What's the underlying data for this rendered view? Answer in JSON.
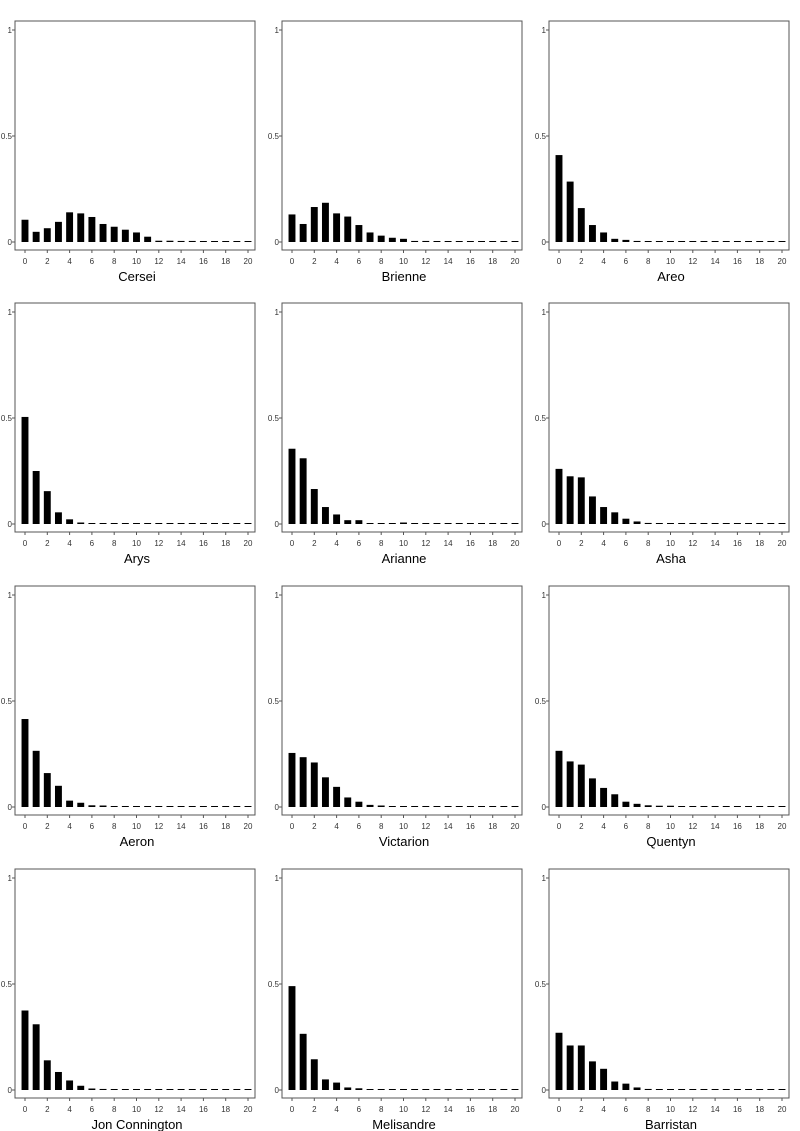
{
  "chart_data": [
    {
      "type": "bar",
      "title": "Cersei",
      "x": [
        0,
        1,
        2,
        3,
        4,
        5,
        6,
        7,
        8,
        9,
        10,
        11,
        12,
        13,
        14,
        15,
        16,
        17,
        18,
        19,
        20
      ],
      "values": [
        0.105,
        0.048,
        0.065,
        0.095,
        0.14,
        0.135,
        0.118,
        0.085,
        0.072,
        0.058,
        0.045,
        0.025,
        0.006,
        0.006,
        0.005,
        0.005,
        0.003,
        0.002,
        0.002,
        0.002,
        0.002
      ],
      "ylim": [
        0,
        1
      ],
      "yticks": [
        "0",
        "0.5",
        "1"
      ],
      "xticks": [
        "0",
        "2",
        "4",
        "6",
        "8",
        "10",
        "12",
        "14",
        "16",
        "18",
        "20"
      ],
      "grid": false
    },
    {
      "type": "bar",
      "title": "Brienne",
      "x": [
        0,
        1,
        2,
        3,
        4,
        5,
        6,
        7,
        8,
        9,
        10,
        11,
        12,
        13,
        14,
        15,
        16,
        17,
        18,
        19,
        20
      ],
      "values": [
        0.13,
        0.085,
        0.165,
        0.185,
        0.135,
        0.12,
        0.08,
        0.045,
        0.03,
        0.02,
        0.015,
        0.005,
        0.005,
        0.004,
        0.002,
        0.002,
        0.002,
        0.002,
        0.002,
        0.002,
        0.002
      ],
      "ylim": [
        0,
        1
      ],
      "yticks": [
        "0",
        "0.5",
        "1"
      ],
      "xticks": [
        "0",
        "2",
        "4",
        "6",
        "8",
        "10",
        "12",
        "14",
        "16",
        "18",
        "20"
      ],
      "grid": false
    },
    {
      "type": "bar",
      "title": "Areo",
      "x": [
        0,
        1,
        2,
        3,
        4,
        5,
        6,
        7,
        8,
        9,
        10,
        11,
        12,
        13,
        14,
        15,
        16,
        17,
        18,
        19,
        20
      ],
      "values": [
        0.41,
        0.285,
        0.16,
        0.08,
        0.045,
        0.015,
        0.01,
        0.005,
        0.002,
        0.002,
        0.002,
        0.002,
        0.002,
        0.002,
        0.002,
        0.002,
        0.002,
        0.002,
        0.002,
        0.002,
        0.002
      ],
      "ylim": [
        0,
        1
      ],
      "yticks": [
        "0",
        "0.5",
        "1"
      ],
      "xticks": [
        "0",
        "2",
        "4",
        "6",
        "8",
        "10",
        "12",
        "14",
        "16",
        "18",
        "20"
      ],
      "grid": false
    },
    {
      "type": "bar",
      "title": "Arys",
      "x": [
        0,
        1,
        2,
        3,
        4,
        5,
        6,
        7,
        8,
        9,
        10,
        11,
        12,
        13,
        14,
        15,
        16,
        17,
        18,
        19,
        20
      ],
      "values": [
        0.505,
        0.25,
        0.155,
        0.055,
        0.022,
        0.007,
        0.004,
        0.002,
        0.002,
        0.002,
        0.002,
        0.002,
        0.002,
        0.002,
        0.002,
        0.002,
        0.002,
        0.002,
        0.002,
        0.002,
        0.002
      ],
      "ylim": [
        0,
        1
      ],
      "yticks": [
        "0",
        "0.5",
        "1"
      ],
      "xticks": [
        "0",
        "2",
        "4",
        "6",
        "8",
        "10",
        "12",
        "14",
        "16",
        "18",
        "20"
      ],
      "grid": false
    },
    {
      "type": "bar",
      "title": "Arianne",
      "x": [
        0,
        1,
        2,
        3,
        4,
        5,
        6,
        7,
        8,
        9,
        10,
        11,
        12,
        13,
        14,
        15,
        16,
        17,
        18,
        19,
        20
      ],
      "values": [
        0.355,
        0.31,
        0.165,
        0.08,
        0.045,
        0.018,
        0.018,
        0.003,
        0.003,
        0.003,
        0.007,
        0.003,
        0.002,
        0.002,
        0.002,
        0.002,
        0.002,
        0.002,
        0.002,
        0.002,
        0.002
      ],
      "ylim": [
        0,
        1
      ],
      "yticks": [
        "0",
        "0.5",
        "1"
      ],
      "xticks": [
        "0",
        "2",
        "4",
        "6",
        "8",
        "10",
        "12",
        "14",
        "16",
        "18",
        "20"
      ],
      "grid": false
    },
    {
      "type": "bar",
      "title": "Asha",
      "x": [
        0,
        1,
        2,
        3,
        4,
        5,
        6,
        7,
        8,
        9,
        10,
        11,
        12,
        13,
        14,
        15,
        16,
        17,
        18,
        19,
        20
      ],
      "values": [
        0.26,
        0.225,
        0.22,
        0.13,
        0.08,
        0.055,
        0.025,
        0.012,
        0.005,
        0.004,
        0.004,
        0.002,
        0.002,
        0.002,
        0.002,
        0.002,
        0.002,
        0.002,
        0.002,
        0.002,
        0.002
      ],
      "ylim": [
        0,
        1
      ],
      "yticks": [
        "0",
        "0.5",
        "1"
      ],
      "xticks": [
        "0",
        "2",
        "4",
        "6",
        "8",
        "10",
        "12",
        "14",
        "16",
        "18",
        "20"
      ],
      "grid": false
    },
    {
      "type": "bar",
      "title": "Aeron",
      "x": [
        0,
        1,
        2,
        3,
        4,
        5,
        6,
        7,
        8,
        9,
        10,
        11,
        12,
        13,
        14,
        15,
        16,
        17,
        18,
        19,
        20
      ],
      "values": [
        0.415,
        0.265,
        0.16,
        0.1,
        0.03,
        0.02,
        0.008,
        0.007,
        0.004,
        0.002,
        0.002,
        0.002,
        0.002,
        0.002,
        0.002,
        0.002,
        0.002,
        0.002,
        0.002,
        0.002,
        0.002
      ],
      "ylim": [
        0,
        1
      ],
      "yticks": [
        "0",
        "0.5",
        "1"
      ],
      "xticks": [
        "0",
        "2",
        "4",
        "6",
        "8",
        "10",
        "12",
        "14",
        "16",
        "18",
        "20"
      ],
      "grid": false
    },
    {
      "type": "bar",
      "title": "Victarion",
      "x": [
        0,
        1,
        2,
        3,
        4,
        5,
        6,
        7,
        8,
        9,
        10,
        11,
        12,
        13,
        14,
        15,
        16,
        17,
        18,
        19,
        20
      ],
      "values": [
        0.255,
        0.235,
        0.21,
        0.14,
        0.095,
        0.045,
        0.025,
        0.01,
        0.007,
        0.004,
        0.004,
        0.003,
        0.002,
        0.002,
        0.002,
        0.002,
        0.002,
        0.002,
        0.002,
        0.002,
        0.002
      ],
      "ylim": [
        0,
        1
      ],
      "yticks": [
        "0",
        "0.5",
        "1"
      ],
      "xticks": [
        "0",
        "2",
        "4",
        "6",
        "8",
        "10",
        "12",
        "14",
        "16",
        "18",
        "20"
      ],
      "grid": false
    },
    {
      "type": "bar",
      "title": "Quentyn",
      "x": [
        0,
        1,
        2,
        3,
        4,
        5,
        6,
        7,
        8,
        9,
        10,
        11,
        12,
        13,
        14,
        15,
        16,
        17,
        18,
        19,
        20
      ],
      "values": [
        0.265,
        0.215,
        0.2,
        0.135,
        0.09,
        0.06,
        0.025,
        0.015,
        0.008,
        0.006,
        0.006,
        0.003,
        0.002,
        0.002,
        0.002,
        0.002,
        0.002,
        0.002,
        0.002,
        0.002,
        0.002
      ],
      "ylim": [
        0,
        1
      ],
      "yticks": [
        "0",
        "0.5",
        "1"
      ],
      "xticks": [
        "0",
        "2",
        "4",
        "6",
        "8",
        "10",
        "12",
        "14",
        "16",
        "18",
        "20"
      ],
      "grid": false
    },
    {
      "type": "bar",
      "title": "Jon Connington",
      "x": [
        0,
        1,
        2,
        3,
        4,
        5,
        6,
        7,
        8,
        9,
        10,
        11,
        12,
        13,
        14,
        15,
        16,
        17,
        18,
        19,
        20
      ],
      "values": [
        0.375,
        0.31,
        0.14,
        0.085,
        0.045,
        0.02,
        0.007,
        0.005,
        0.004,
        0.002,
        0.002,
        0.002,
        0.002,
        0.002,
        0.002,
        0.002,
        0.002,
        0.002,
        0.002,
        0.002,
        0.002
      ],
      "ylim": [
        0,
        1
      ],
      "yticks": [
        "0",
        "0.5",
        "1"
      ],
      "xticks": [
        "0",
        "2",
        "4",
        "6",
        "8",
        "10",
        "12",
        "14",
        "16",
        "18",
        "20"
      ],
      "grid": false
    },
    {
      "type": "bar",
      "title": "Melisandre",
      "x": [
        0,
        1,
        2,
        3,
        4,
        5,
        6,
        7,
        8,
        9,
        10,
        11,
        12,
        13,
        14,
        15,
        16,
        17,
        18,
        19,
        20
      ],
      "values": [
        0.49,
        0.265,
        0.145,
        0.05,
        0.035,
        0.012,
        0.008,
        0.003,
        0.003,
        0.002,
        0.002,
        0.002,
        0.002,
        0.002,
        0.002,
        0.002,
        0.002,
        0.002,
        0.002,
        0.002,
        0.002
      ],
      "ylim": [
        0,
        1
      ],
      "yticks": [
        "0",
        "0.5",
        "1"
      ],
      "xticks": [
        "0",
        "2",
        "4",
        "6",
        "8",
        "10",
        "12",
        "14",
        "16",
        "18",
        "20"
      ],
      "grid": false
    },
    {
      "type": "bar",
      "title": "Barristan",
      "x": [
        0,
        1,
        2,
        3,
        4,
        5,
        6,
        7,
        8,
        9,
        10,
        11,
        12,
        13,
        14,
        15,
        16,
        17,
        18,
        19,
        20
      ],
      "values": [
        0.27,
        0.21,
        0.21,
        0.135,
        0.1,
        0.04,
        0.03,
        0.012,
        0.005,
        0.004,
        0.004,
        0.003,
        0.002,
        0.002,
        0.002,
        0.002,
        0.002,
        0.002,
        0.002,
        0.002,
        0.002
      ],
      "ylim": [
        0,
        1
      ],
      "yticks": [
        "0",
        "0.5",
        "1"
      ],
      "xticks": [
        "0",
        "2",
        "4",
        "6",
        "8",
        "10",
        "12",
        "14",
        "16",
        "18",
        "20"
      ],
      "grid": false
    }
  ],
  "colors": {
    "bar": "#000000",
    "frame": "#555555",
    "tick_text": "#333333",
    "title_text": "#000000",
    "background": "#ffffff"
  }
}
